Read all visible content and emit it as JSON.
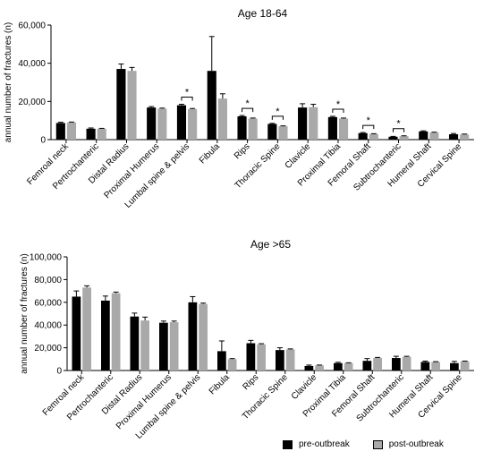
{
  "chart_data": [
    {
      "type": "bar",
      "title": "Age 18-64",
      "xlabel": "",
      "ylabel": "annual number of fractures (n)",
      "ylim": [
        0,
        60000
      ],
      "yticks": [
        0,
        20000,
        40000,
        60000
      ],
      "ytick_labels": [
        "0",
        "20,000",
        "40,000",
        "60,000"
      ],
      "grid": false,
      "categories": [
        "Femroal neck",
        "Pertrochanteric",
        "Distal Radius",
        "Proximal Humerus",
        "Lumbal spine & pelvis",
        "Fibula",
        "Rips",
        "Thoracic Spine",
        "Clavicle",
        "Proximal Tibia",
        "Femoral Shaft",
        "Subtrochanteric",
        "Humeral Shaft",
        "Cervical Spine"
      ],
      "series": [
        {
          "name": "pre-outbreak",
          "color": "#000000",
          "values": [
            8700,
            5700,
            37000,
            16800,
            18000,
            36000,
            12200,
            8200,
            16800,
            11800,
            3400,
            1500,
            4300,
            2800
          ],
          "errors": [
            400,
            400,
            2600,
            500,
            500,
            18000,
            400,
            300,
            2000,
            400,
            300,
            200,
            300,
            400
          ]
        },
        {
          "name": "post-outbreak",
          "color": "#a9a9a9",
          "values": [
            9000,
            5700,
            36000,
            16200,
            16000,
            21500,
            11000,
            7000,
            17000,
            11000,
            2900,
            1800,
            3700,
            2700
          ],
          "errors": [
            200,
            200,
            1800,
            300,
            300,
            2500,
            300,
            200,
            1500,
            300,
            200,
            200,
            200,
            200
          ]
        }
      ],
      "significance": [
        {
          "category": "Lumbal spine & pelvis",
          "label": "*"
        },
        {
          "category": "Rips",
          "label": "*"
        },
        {
          "category": "Thoracic Spine",
          "label": "*"
        },
        {
          "category": "Proximal Tibia",
          "label": "*"
        },
        {
          "category": "Femoral Shaft",
          "label": "*"
        },
        {
          "category": "Subtrochanteric",
          "label": "*"
        }
      ]
    },
    {
      "type": "bar",
      "title": "Age >65",
      "xlabel": "",
      "ylabel": "annual number of fractures (n)",
      "ylim": [
        0,
        100000
      ],
      "yticks": [
        0,
        20000,
        40000,
        60000,
        80000,
        100000
      ],
      "ytick_labels": [
        "0",
        "20,000",
        "40,000",
        "60,000",
        "80,000",
        "100,000"
      ],
      "grid": false,
      "categories": [
        "Femroal neck",
        "Pertrochanteric",
        "Distal Radius",
        "Proximal Humerus",
        "Lumbal spine & pelvis",
        "Fibula",
        "Rips",
        "Thoracic Spine",
        "Clavicle",
        "Proximal Tibia",
        "Femoral Shaft",
        "Subtrochanteric",
        "Humeral Shaft",
        "Cervical Spine"
      ],
      "series": [
        {
          "name": "pre-outbreak",
          "color": "#000000",
          "values": [
            65000,
            61500,
            47500,
            42000,
            60000,
            17000,
            24000,
            18000,
            4000,
            6500,
            8500,
            11000,
            7500,
            6500
          ],
          "errors": [
            5000,
            4000,
            3000,
            1500,
            5000,
            9000,
            2500,
            2000,
            800,
            700,
            2000,
            1500,
            800,
            1500
          ]
        },
        {
          "name": "post-outbreak",
          "color": "#a9a9a9",
          "values": [
            73000,
            68000,
            44000,
            42500,
            58500,
            10000,
            23000,
            18500,
            4500,
            6500,
            11000,
            12000,
            7500,
            8000
          ],
          "errors": [
            1500,
            1000,
            3000,
            1000,
            800,
            500,
            600,
            500,
            300,
            300,
            500,
            500,
            300,
            300
          ]
        }
      ],
      "significance": []
    }
  ],
  "legend": {
    "position": "bottom-right",
    "items": [
      {
        "label": "pre-outbreak",
        "color": "#000000"
      },
      {
        "label": "post-outbreak",
        "color": "#a9a9a9"
      }
    ]
  }
}
